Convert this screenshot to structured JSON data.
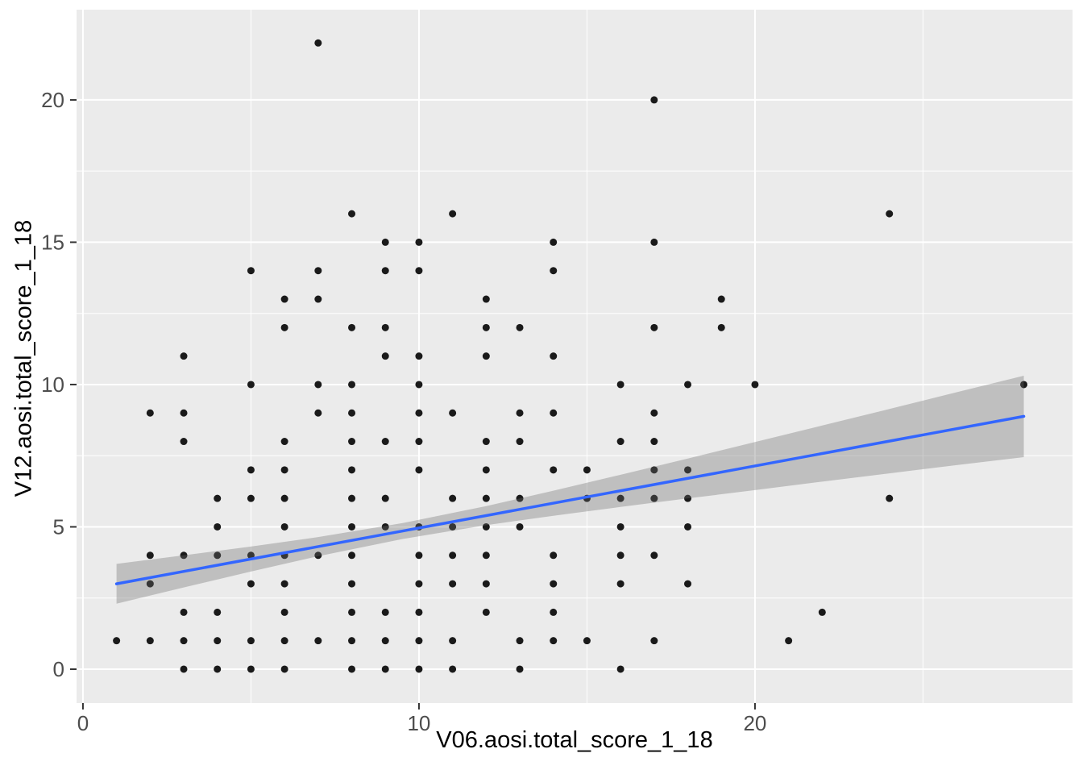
{
  "chart_data": {
    "type": "scatter",
    "title": "",
    "xlabel": "V06.aosi.total_score_1_18",
    "ylabel": "V12.aosi.total_score_1_18",
    "xlim": [
      -0.19,
      29.45
    ],
    "ylim": [
      -1.19,
      23.17
    ],
    "x_ticks": [
      0,
      10,
      20
    ],
    "y_ticks": [
      0,
      5,
      10,
      15,
      20
    ],
    "x_minor_ticks": [
      5,
      15,
      25
    ],
    "y_minor_ticks": [
      2.5,
      7.5,
      12.5,
      17.5
    ],
    "grid": "major-and-minor white on gray panel",
    "legend": false,
    "points": [
      [
        7,
        22
      ],
      [
        17,
        20
      ],
      [
        8,
        16
      ],
      [
        11,
        16
      ],
      [
        24,
        16
      ],
      [
        9,
        15
      ],
      [
        10,
        15
      ],
      [
        14,
        15
      ],
      [
        17,
        15
      ],
      [
        5,
        14
      ],
      [
        7,
        14
      ],
      [
        9,
        14
      ],
      [
        10,
        14
      ],
      [
        14,
        14
      ],
      [
        6,
        13
      ],
      [
        7,
        13
      ],
      [
        12,
        13
      ],
      [
        19,
        13
      ],
      [
        6,
        12
      ],
      [
        8,
        12
      ],
      [
        9,
        12
      ],
      [
        12,
        12
      ],
      [
        13,
        12
      ],
      [
        17,
        12
      ],
      [
        19,
        12
      ],
      [
        3,
        11
      ],
      [
        9,
        11
      ],
      [
        10,
        11
      ],
      [
        12,
        11
      ],
      [
        14,
        11
      ],
      [
        5,
        10
      ],
      [
        7,
        10
      ],
      [
        8,
        10
      ],
      [
        10,
        10
      ],
      [
        16,
        10
      ],
      [
        18,
        10
      ],
      [
        20,
        10
      ],
      [
        28,
        10
      ],
      [
        2,
        9
      ],
      [
        3,
        9
      ],
      [
        7,
        9
      ],
      [
        8,
        9
      ],
      [
        10,
        9
      ],
      [
        11,
        9
      ],
      [
        13,
        9
      ],
      [
        14,
        9
      ],
      [
        17,
        9
      ],
      [
        3,
        8
      ],
      [
        6,
        8
      ],
      [
        8,
        8
      ],
      [
        9,
        8
      ],
      [
        10,
        8
      ],
      [
        12,
        8
      ],
      [
        13,
        8
      ],
      [
        16,
        8
      ],
      [
        17,
        8
      ],
      [
        5,
        7
      ],
      [
        6,
        7
      ],
      [
        8,
        7
      ],
      [
        10,
        7
      ],
      [
        12,
        7
      ],
      [
        14,
        7
      ],
      [
        15,
        7
      ],
      [
        17,
        7
      ],
      [
        18,
        7
      ],
      [
        4,
        6
      ],
      [
        5,
        6
      ],
      [
        6,
        6
      ],
      [
        8,
        6
      ],
      [
        9,
        6
      ],
      [
        11,
        6
      ],
      [
        12,
        6
      ],
      [
        13,
        6
      ],
      [
        15,
        6
      ],
      [
        16,
        6
      ],
      [
        17,
        6
      ],
      [
        18,
        6
      ],
      [
        24,
        6
      ],
      [
        4,
        5
      ],
      [
        6,
        5
      ],
      [
        8,
        5
      ],
      [
        9,
        5
      ],
      [
        10,
        5
      ],
      [
        11,
        5
      ],
      [
        12,
        5
      ],
      [
        13,
        5
      ],
      [
        16,
        5
      ],
      [
        18,
        5
      ],
      [
        2,
        4
      ],
      [
        3,
        4
      ],
      [
        4,
        4
      ],
      [
        5,
        4
      ],
      [
        6,
        4
      ],
      [
        7,
        4
      ],
      [
        8,
        4
      ],
      [
        10,
        4
      ],
      [
        11,
        4
      ],
      [
        12,
        4
      ],
      [
        14,
        4
      ],
      [
        16,
        4
      ],
      [
        17,
        4
      ],
      [
        2,
        3
      ],
      [
        5,
        3
      ],
      [
        6,
        3
      ],
      [
        8,
        3
      ],
      [
        10,
        3
      ],
      [
        11,
        3
      ],
      [
        12,
        3
      ],
      [
        14,
        3
      ],
      [
        16,
        3
      ],
      [
        18,
        3
      ],
      [
        3,
        2
      ],
      [
        4,
        2
      ],
      [
        6,
        2
      ],
      [
        8,
        2
      ],
      [
        9,
        2
      ],
      [
        10,
        2
      ],
      [
        12,
        2
      ],
      [
        14,
        2
      ],
      [
        22,
        2
      ],
      [
        1,
        1
      ],
      [
        2,
        1
      ],
      [
        3,
        1
      ],
      [
        4,
        1
      ],
      [
        5,
        1
      ],
      [
        6,
        1
      ],
      [
        7,
        1
      ],
      [
        8,
        1
      ],
      [
        9,
        1
      ],
      [
        10,
        1
      ],
      [
        11,
        1
      ],
      [
        13,
        1
      ],
      [
        14,
        1
      ],
      [
        15,
        1
      ],
      [
        17,
        1
      ],
      [
        21,
        1
      ],
      [
        3,
        0
      ],
      [
        4,
        0
      ],
      [
        5,
        0
      ],
      [
        6,
        0
      ],
      [
        8,
        0
      ],
      [
        9,
        0
      ],
      [
        10,
        0
      ],
      [
        11,
        0
      ],
      [
        13,
        0
      ],
      [
        16,
        0
      ]
    ],
    "regression_line": {
      "type": "linear",
      "x_start": 1,
      "x_end": 28,
      "intercept": 2.78,
      "slope": 0.218
    },
    "confidence_ribbon": {
      "x": [
        1,
        3,
        5,
        7,
        9.5,
        12,
        14,
        16,
        18,
        20,
        22,
        24,
        26,
        28
      ],
      "lower": [
        2.3,
        2.87,
        3.43,
        3.97,
        4.57,
        5.06,
        5.39,
        5.7,
        6.0,
        6.29,
        6.59,
        6.88,
        7.17,
        7.45
      ],
      "upper": [
        3.7,
        4.0,
        4.31,
        4.64,
        5.13,
        5.73,
        6.27,
        6.83,
        7.4,
        7.98,
        8.56,
        9.14,
        9.73,
        10.31
      ]
    },
    "colors": {
      "panel_background": "#EBEBEB",
      "gridline": "#FFFFFF",
      "point": "#1A1A1A",
      "regression_line": "#3366FF",
      "ribbon_fill": "rgba(110,110,110,0.35)",
      "tick_label": "#4D4D4D",
      "tick_mark": "#333333",
      "axis_title": "#000000"
    }
  }
}
